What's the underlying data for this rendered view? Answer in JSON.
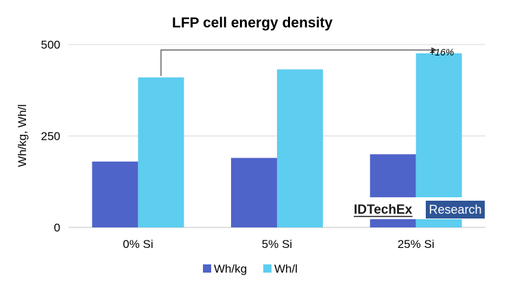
{
  "chart_data": {
    "type": "bar",
    "title": "LFP cell energy density",
    "ylabel": "Wh/kg, Wh/l",
    "xlabel": "",
    "categories": [
      "0% Si",
      "5% Si",
      "25% Si"
    ],
    "series": [
      {
        "name": "Wh/kg",
        "values": [
          180,
          190,
          200
        ],
        "color": "#4f64c8"
      },
      {
        "name": "Wh/l",
        "values": [
          410,
          432,
          476
        ],
        "color": "#5dcdf0"
      }
    ],
    "ylim": [
      0,
      500
    ],
    "yticks": [
      "0",
      "250",
      "500"
    ],
    "grid": "horizontal",
    "legend": "bottom",
    "annotation": {
      "text": "+16%",
      "from_category": "0% Si",
      "to_category": "25% Si",
      "series": "Wh/l"
    }
  },
  "logo": {
    "brand": "IDTechEx",
    "tag": "Research"
  },
  "colors": {
    "grid": "#d9d9d9",
    "axis": "#bfbfbf",
    "arrow": "#404040",
    "logo_box": "#2f5597"
  }
}
